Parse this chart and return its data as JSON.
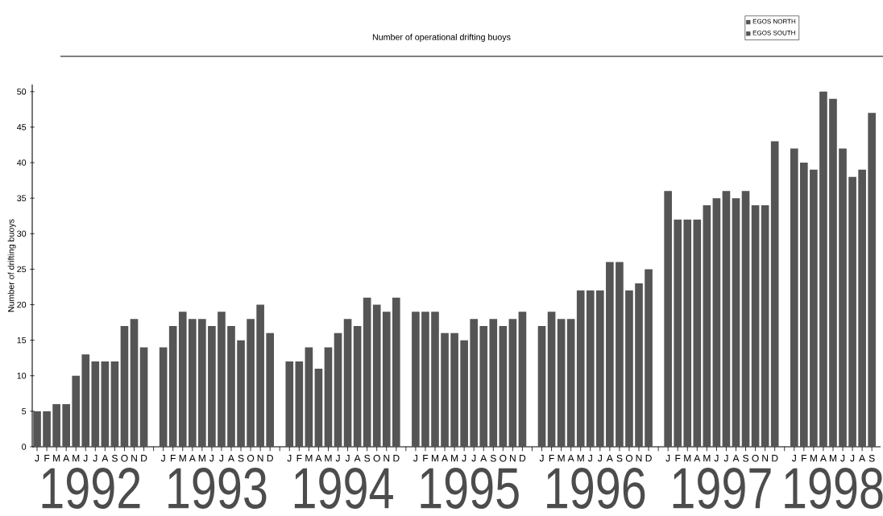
{
  "chart_data": {
    "type": "bar",
    "title": "Number of operational drifting buoys",
    "ylabel": "Number of drifting buoys",
    "categories": [
      "J",
      "F",
      "M",
      "A",
      "M",
      "J",
      "J",
      "A",
      "S",
      "O",
      "N",
      "D",
      null,
      "J",
      "F",
      "M",
      "A",
      "M",
      "J",
      "J",
      "A",
      "S",
      "O",
      "N",
      "D",
      null,
      "J",
      "F",
      "M",
      "A",
      "M",
      "J",
      "J",
      "A",
      "S",
      "O",
      "N",
      "D",
      null,
      "J",
      "F",
      "M",
      "A",
      "M",
      "J",
      "J",
      "A",
      "S",
      "O",
      "N",
      "D",
      null,
      "J",
      "F",
      "M",
      "A",
      "M",
      "J",
      "J",
      "A",
      "S",
      "O",
      "N",
      "D",
      null,
      "J",
      "F",
      "M",
      "A",
      "M",
      "J",
      "J",
      "A",
      "S",
      "O",
      "N",
      "D",
      null,
      "J",
      "F",
      "M",
      "A",
      "M",
      "J",
      "J",
      "A",
      "S"
    ],
    "series": [
      {
        "name": "EGOS NORTH",
        "color": "#555555",
        "values": [
          5,
          5,
          6,
          6,
          10,
          13,
          12,
          12,
          12,
          17,
          18,
          14,
          null,
          14,
          17,
          19,
          18,
          18,
          17,
          19,
          17,
          15,
          18,
          20,
          16,
          null,
          12,
          12,
          14,
          11,
          14,
          16,
          18,
          17,
          21,
          20,
          19,
          21,
          null,
          19,
          19,
          19,
          16,
          16,
          15,
          18,
          17,
          18,
          17,
          18,
          19,
          null,
          17,
          19,
          18,
          18,
          22,
          22,
          22,
          26,
          26,
          22,
          23,
          25,
          null,
          36,
          32,
          32,
          32,
          34,
          35,
          36,
          35,
          36,
          34,
          34,
          43,
          null,
          42,
          40,
          39,
          50,
          49,
          42,
          38,
          39,
          47
        ]
      },
      {
        "name": "EGOS SOUTH",
        "color": "#555555",
        "values": [
          null,
          null,
          null,
          null,
          null,
          null,
          null,
          null,
          null,
          null,
          null,
          null,
          null,
          null,
          null,
          null,
          null,
          null,
          null,
          null,
          null,
          null,
          null,
          null,
          null,
          null,
          null,
          null,
          null,
          null,
          null,
          null,
          null,
          null,
          null,
          null,
          null,
          null,
          null,
          null,
          null,
          null,
          null,
          null,
          null,
          null,
          null,
          null,
          null,
          null,
          null,
          null,
          null,
          null,
          null,
          null,
          null,
          null,
          null,
          null,
          null,
          null,
          null,
          null,
          null,
          null,
          null,
          null,
          null,
          null,
          null,
          null,
          null,
          null,
          null,
          null,
          null,
          null,
          null,
          null,
          null,
          null,
          null,
          null,
          null,
          null,
          null
        ]
      }
    ],
    "annotations": [
      "1992",
      "1993",
      "1994",
      "1995",
      "1996",
      "1997",
      "1998"
    ],
    "ylim": [
      0,
      51
    ],
    "yticks": [
      0,
      5,
      10,
      15,
      20,
      25,
      30,
      35,
      40,
      45,
      50
    ],
    "legend": "top right"
  }
}
